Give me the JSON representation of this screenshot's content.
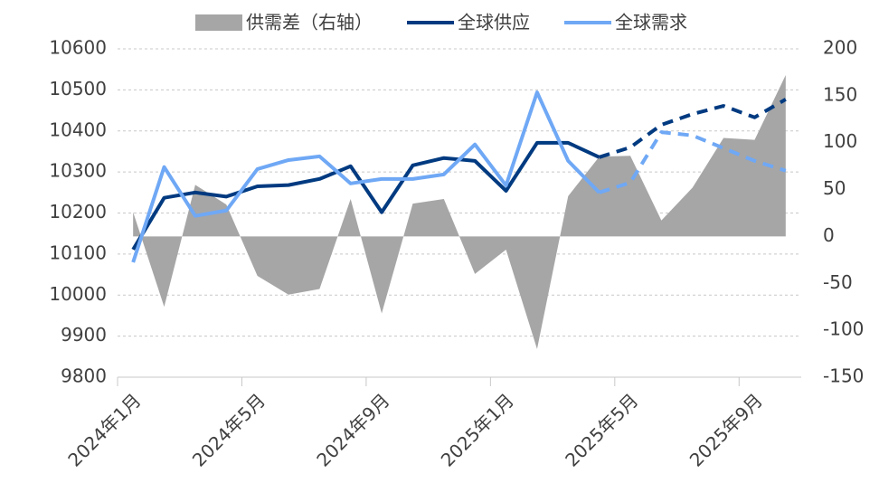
{
  "chart_data": {
    "type": "line_area_combo",
    "categories": [
      "2024年1月",
      null,
      null,
      null,
      "2024年5月",
      null,
      null,
      null,
      "2024年9月",
      null,
      null,
      null,
      "2025年1月",
      null,
      null,
      null,
      "2025年5月",
      null,
      null,
      null,
      "2025年9月",
      null
    ],
    "series": [
      {
        "name": "供需差（右轴）",
        "type": "area",
        "axis": "y2",
        "color": "#a6a6a6",
        "values": [
          26,
          -75,
          55,
          34,
          -42,
          -62,
          -56,
          40,
          -82,
          35,
          40,
          -40,
          -14,
          -120,
          43,
          85,
          86,
          17,
          52,
          105,
          103,
          172
        ]
      },
      {
        "name": "全球供应",
        "type": "line",
        "color": "#003a80",
        "dashed_from_index": 15,
        "values": [
          10111,
          10237,
          10250,
          10240,
          10265,
          10268,
          10283,
          10314,
          10202,
          10316,
          10334,
          10327,
          10254,
          10371,
          10371,
          10336,
          10360,
          10415,
          10441,
          10461,
          10433,
          10477
        ]
      },
      {
        "name": "全球需求",
        "type": "line",
        "color": "#6fa8f5",
        "dashed_from_index": 15,
        "values": [
          10080,
          10312,
          10193,
          10206,
          10307,
          10329,
          10338,
          10272,
          10283,
          10283,
          10294,
          10367,
          10267,
          10494,
          10327,
          10250,
          10274,
          10397,
          10389,
          10358,
          10327,
          10303
        ]
      }
    ],
    "ylim": [
      9800,
      10600
    ],
    "yticks": [
      9800,
      9900,
      10000,
      10100,
      10200,
      10300,
      10400,
      10500,
      10600
    ],
    "y2lim": [
      -150,
      200
    ],
    "y2ticks": [
      -150,
      -100,
      -50,
      0,
      50,
      100,
      150,
      200
    ],
    "grid": true,
    "legend": "top"
  }
}
